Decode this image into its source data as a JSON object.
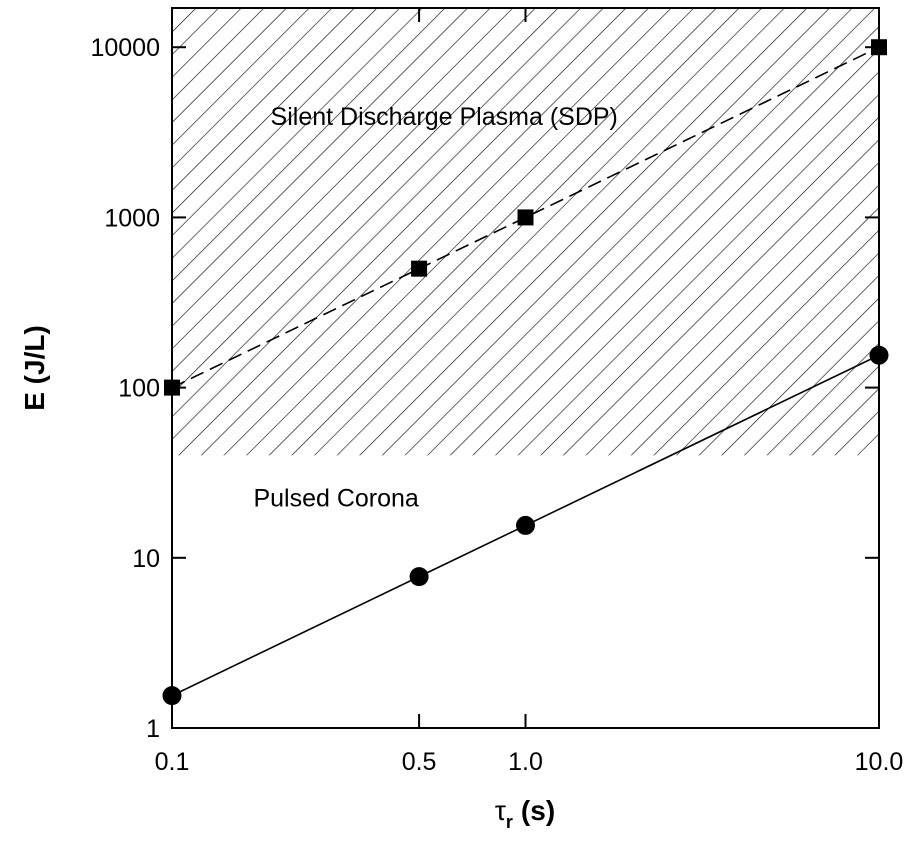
{
  "chart_data": {
    "type": "line",
    "xscale": "log",
    "yscale": "log",
    "xlim": [
      0.1,
      10.0
    ],
    "ylim": [
      1,
      17000
    ],
    "x_ticks": [
      {
        "value": 0.1,
        "label": "0.1"
      },
      {
        "value": 0.5,
        "label": "0.5"
      },
      {
        "value": 1.0,
        "label": "1.0"
      },
      {
        "value": 10.0,
        "label": "10.0"
      }
    ],
    "y_ticks": [
      {
        "value": 1,
        "label": "1"
      },
      {
        "value": 10,
        "label": "10"
      },
      {
        "value": 100,
        "label": "100"
      },
      {
        "value": 1000,
        "label": "1000"
      },
      {
        "value": 10000,
        "label": "10000"
      }
    ],
    "xlabel_symbol": "τ",
    "xlabel_subscript": "r",
    "xlabel_unit": "(s)",
    "ylabel": "E (J/L)",
    "grid": false,
    "legend": "none",
    "series": [
      {
        "marker": "square",
        "line_style": "dashed",
        "color": "#000000",
        "x": [
          0.1,
          0.5,
          1.0,
          10.0
        ],
        "y": [
          100,
          500,
          1000,
          10000
        ]
      },
      {
        "marker": "circle",
        "line_style": "solid",
        "color": "#000000",
        "x": [
          0.1,
          0.5,
          1.0,
          10.0
        ],
        "y": [
          1.55,
          7.75,
          15.5,
          155
        ]
      }
    ],
    "shaded_region": {
      "label": "Silent Discharge Plasma (SDP)",
      "y_min": 40,
      "pattern": "diagonal-hatch"
    },
    "annotations": [
      {
        "text": "Pulsed Corona",
        "x": 0.17,
        "y": 20
      },
      {
        "text": "Silent Discharge Plasma (SDP)",
        "x": 0.19,
        "y": 3500
      }
    ]
  }
}
